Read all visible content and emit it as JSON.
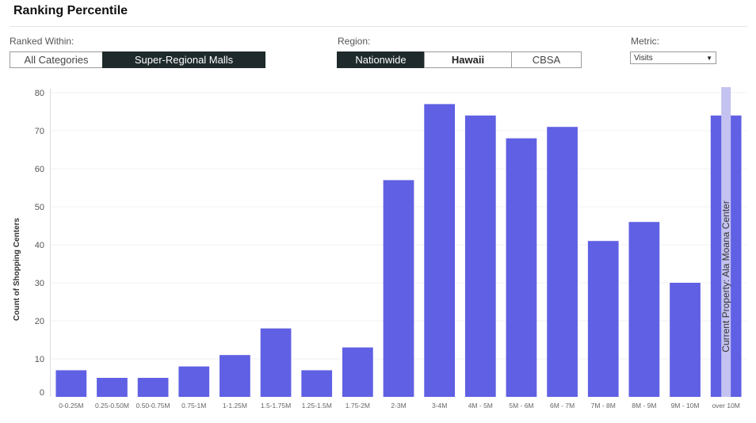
{
  "header": {
    "title": "Ranking Percentile"
  },
  "controls": {
    "ranked_within": {
      "label": "Ranked Within:",
      "options": [
        {
          "label": "All Categories",
          "active": false
        },
        {
          "label": "Super-Regional Malls",
          "active": true
        }
      ]
    },
    "region": {
      "label": "Region:",
      "options": [
        {
          "label": "Nationwide",
          "active": true
        },
        {
          "label": "Hawaii",
          "active": false
        },
        {
          "label": "CBSA",
          "active": false
        }
      ]
    },
    "metric": {
      "label": "Metric:",
      "selected": "Visits"
    }
  },
  "colors": {
    "bar": "#6060e4",
    "highlight": "#c4c2f0",
    "active_button": "#1e2a2b"
  },
  "chart_data": {
    "type": "bar",
    "ylabel": "Count of Shopping Centers",
    "xlabel": "",
    "ylim": [
      0,
      80
    ],
    "yticks": [
      0,
      10,
      20,
      30,
      40,
      50,
      60,
      70,
      80
    ],
    "categories": [
      "0-0.25M",
      "0.25-0.50M",
      "0.50-0.75M",
      "0.75-1M",
      "1-1.25M",
      "1.5-1.75M",
      "1.25-1.5M",
      "1.75-2M",
      "2-3M",
      "3-4M",
      "4M - 5M",
      "5M - 6M",
      "6M - 7M",
      "7M - 8M",
      "8M - 9M",
      "9M - 10M",
      "over 10M"
    ],
    "values": [
      7,
      5,
      5,
      8,
      11,
      18,
      7,
      13,
      57,
      77,
      74,
      68,
      71,
      41,
      46,
      30,
      74
    ],
    "highlight": {
      "category": "over 10M",
      "label": "Current Property: Ala Moana Center"
    }
  }
}
